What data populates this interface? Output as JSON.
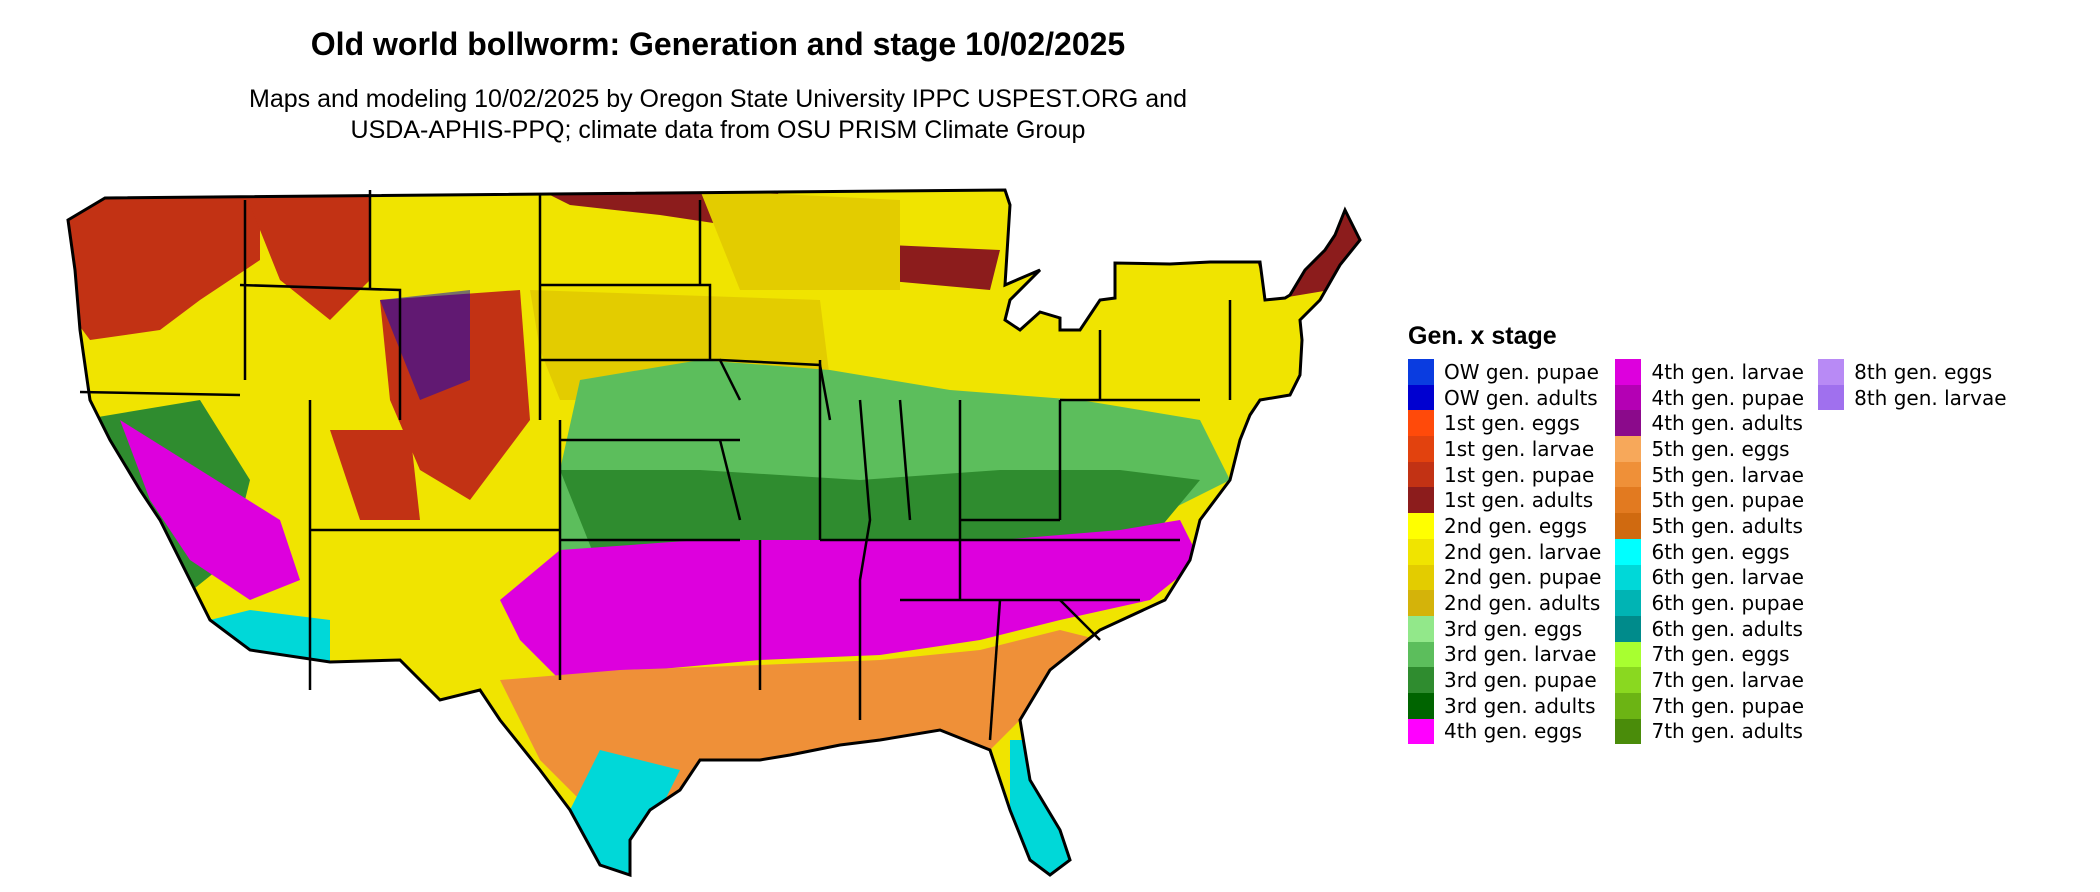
{
  "title": "Old world bollworm: Generation and stage 10/02/2025",
  "subtitle_lines": [
    "Maps and modeling 10/02/2025 by Oregon State University IPPC USPEST.ORG and",
    "USDA-APHIS-PPQ; climate data from OSU PRISM Climate Group"
  ],
  "legend": {
    "title": "Gen. x stage",
    "items": [
      {
        "label": "OW gen. pupae",
        "color": "#0a3ce0"
      },
      {
        "label": "OW gen. adults",
        "color": "#0000d0"
      },
      {
        "label": "1st gen. eggs",
        "color": "#ff4a0a"
      },
      {
        "label": "1st gen. larvae",
        "color": "#e2420e"
      },
      {
        "label": "1st gen. pupae",
        "color": "#c23214"
      },
      {
        "label": "1st gen. adults",
        "color": "#8c1c1c"
      },
      {
        "label": "2nd gen. eggs",
        "color": "#ffff00"
      },
      {
        "label": "2nd gen. larvae",
        "color": "#f0e400"
      },
      {
        "label": "2nd gen. pupae",
        "color": "#e3cc00"
      },
      {
        "label": "2nd gen. adults",
        "color": "#d4b30a"
      },
      {
        "label": "3rd gen. eggs",
        "color": "#92e88a"
      },
      {
        "label": "3rd gen. larvae",
        "color": "#5cbe5c"
      },
      {
        "label": "3rd gen. pupae",
        "color": "#2f8c2f"
      },
      {
        "label": "3rd gen. adults",
        "color": "#006400"
      },
      {
        "label": "4th gen. eggs",
        "color": "#ff00ff"
      },
      {
        "label": "4th gen. larvae",
        "color": "#dd00dd"
      },
      {
        "label": "4th gen. pupae",
        "color": "#b400b4"
      },
      {
        "label": "4th gen. adults",
        "color": "#8b0a8b"
      },
      {
        "label": "5th gen. eggs",
        "color": "#f7a85a"
      },
      {
        "label": "5th gen. larvae",
        "color": "#ef9038"
      },
      {
        "label": "5th gen. pupae",
        "color": "#e27a20"
      },
      {
        "label": "5th gen. adults",
        "color": "#d06a10"
      },
      {
        "label": "6th gen. eggs",
        "color": "#00ffff"
      },
      {
        "label": "6th gen. larvae",
        "color": "#00d8d8"
      },
      {
        "label": "6th gen. pupae",
        "color": "#00b4b4"
      },
      {
        "label": "6th gen. adults",
        "color": "#008b8b"
      },
      {
        "label": "7th gen. eggs",
        "color": "#a8ff30"
      },
      {
        "label": "7th gen. larvae",
        "color": "#8ad820"
      },
      {
        "label": "7th gen. pupae",
        "color": "#6cb414"
      },
      {
        "label": "7th gen. adults",
        "color": "#4a8c0a"
      },
      {
        "label": "8th gen. eggs",
        "color": "#b88af5"
      },
      {
        "label": "8th gen. larvae",
        "color": "#a070ee"
      }
    ]
  }
}
